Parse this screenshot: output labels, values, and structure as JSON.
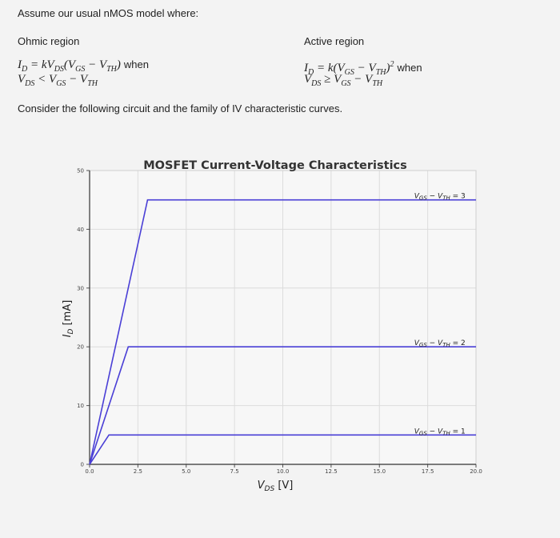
{
  "text": {
    "intro": "Assume our usual nMOS model where:",
    "ohmic_heading": "Ohmic region",
    "active_heading": "Active region",
    "when": "when",
    "consider": "Consider the following circuit and the family of IV characteristic curves."
  },
  "chart_data": {
    "type": "line",
    "title": "MOSFET Current-Voltage Characteristics",
    "xlabel": "V_DS [V]",
    "ylabel": "I_D [mA]",
    "xlim": [
      0,
      20
    ],
    "ylim": [
      0,
      50
    ],
    "x_ticks": [
      "0.0",
      "2.5",
      "5.0",
      "7.5",
      "10.0",
      "12.5",
      "15.0",
      "17.5",
      "20.0"
    ],
    "y_ticks": [
      "0",
      "10",
      "20",
      "30",
      "40",
      "50"
    ],
    "grid": true,
    "series": [
      {
        "name": "V_GS - V_TH = 1",
        "overdrive": 1,
        "x": [
          0,
          1,
          20
        ],
        "y": [
          0,
          5,
          5
        ]
      },
      {
        "name": "V_GS - V_TH = 2",
        "overdrive": 2,
        "x": [
          0,
          2,
          20
        ],
        "y": [
          0,
          20,
          20
        ]
      },
      {
        "name": "V_GS - V_TH = 3",
        "overdrive": 3,
        "x": [
          0,
          3,
          20
        ],
        "y": [
          0,
          45,
          45
        ]
      }
    ],
    "colors": {
      "curve": "#4a3fd6"
    }
  }
}
